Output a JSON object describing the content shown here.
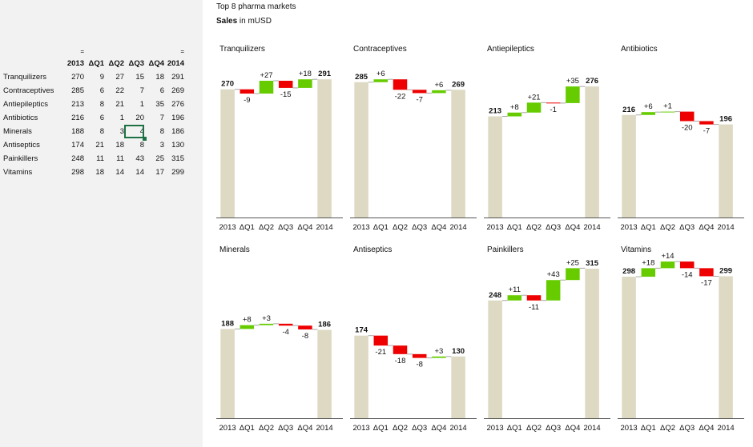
{
  "header": {
    "title": "Top 8 pharma markets",
    "subtitle_bold": "Sales",
    "subtitle_rest": " in mUSD"
  },
  "table": {
    "columns": [
      "2013",
      "ΔQ1",
      "ΔQ2",
      "ΔQ3",
      "ΔQ4",
      "2014"
    ],
    "eq_marks": [
      "=",
      "",
      "",
      "",
      "",
      "="
    ],
    "rows": [
      {
        "name": "Tranquilizers",
        "values": [
          "270",
          "9",
          "27",
          "15",
          "18",
          "291"
        ]
      },
      {
        "name": "Contraceptives",
        "values": [
          "285",
          "6",
          "22",
          "7",
          "6",
          "269"
        ]
      },
      {
        "name": "Antiepileptics",
        "values": [
          "213",
          "8",
          "21",
          "1",
          "35",
          "276"
        ]
      },
      {
        "name": "Antibiotics",
        "values": [
          "216",
          "6",
          "1",
          "20",
          "7",
          "196"
        ]
      },
      {
        "name": "Minerals",
        "values": [
          "188",
          "8",
          "3",
          "4",
          "8",
          "186"
        ]
      },
      {
        "name": "Antiseptics",
        "values": [
          "174",
          "21",
          "18",
          "8",
          "3",
          "130"
        ]
      },
      {
        "name": "Painkillers",
        "values": [
          "248",
          "11",
          "11",
          "43",
          "25",
          "315"
        ]
      },
      {
        "name": "Vitamins",
        "values": [
          "298",
          "18",
          "14",
          "14",
          "17",
          "299"
        ]
      }
    ],
    "selected_cell": {
      "row": 4,
      "col": 3
    }
  },
  "colors": {
    "total_bar": "#ddd9c3",
    "increase": "#66cc00",
    "decrease": "#ee0000",
    "connector": "#a6a6a6",
    "axis": "#555555",
    "left_panel": "#f2f2f2",
    "selection": "#1e7145"
  },
  "chart_data": [
    {
      "type": "bar",
      "subtype": "waterfall",
      "title": "Tranquilizers",
      "categories": [
        "2013",
        "ΔQ1",
        "ΔQ2",
        "ΔQ3",
        "ΔQ4",
        "2014"
      ],
      "values": [
        270,
        -9,
        27,
        -15,
        18,
        291
      ],
      "labels": [
        "270",
        "-9",
        "+27",
        "-15",
        "+18",
        "291"
      ]
    },
    {
      "type": "bar",
      "subtype": "waterfall",
      "title": "Contraceptives",
      "categories": [
        "2013",
        "ΔQ1",
        "ΔQ2",
        "ΔQ3",
        "ΔQ4",
        "2014"
      ],
      "values": [
        285,
        6,
        -22,
        -7,
        6,
        269
      ],
      "labels": [
        "285",
        "+6",
        "-22",
        "-7",
        "+6",
        "269"
      ]
    },
    {
      "type": "bar",
      "subtype": "waterfall",
      "title": "Antiepileptics",
      "categories": [
        "2013",
        "ΔQ1",
        "ΔQ2",
        "ΔQ3",
        "ΔQ4",
        "2014"
      ],
      "values": [
        213,
        8,
        21,
        -1,
        35,
        276
      ],
      "labels": [
        "213",
        "+8",
        "+21",
        "-1",
        "+35",
        "276"
      ]
    },
    {
      "type": "bar",
      "subtype": "waterfall",
      "title": "Antibiotics",
      "categories": [
        "2013",
        "ΔQ1",
        "ΔQ2",
        "ΔQ3",
        "ΔQ4",
        "2014"
      ],
      "values": [
        216,
        6,
        1,
        -20,
        -7,
        196
      ],
      "labels": [
        "216",
        "+6",
        "+1",
        "-20",
        "-7",
        "196"
      ]
    },
    {
      "type": "bar",
      "subtype": "waterfall",
      "title": "Minerals",
      "categories": [
        "2013",
        "ΔQ1",
        "ΔQ2",
        "ΔQ3",
        "ΔQ4",
        "2014"
      ],
      "values": [
        188,
        8,
        3,
        -4,
        -8,
        186
      ],
      "labels": [
        "188",
        "+8",
        "+3",
        "-4",
        "-8",
        "186"
      ]
    },
    {
      "type": "bar",
      "subtype": "waterfall",
      "title": "Antiseptics",
      "categories": [
        "2013",
        "ΔQ1",
        "ΔQ2",
        "ΔQ3",
        "ΔQ4",
        "2014"
      ],
      "values": [
        174,
        -21,
        -18,
        -8,
        3,
        130
      ],
      "labels": [
        "174",
        "-21",
        "-18",
        "-8",
        "+3",
        "130"
      ]
    },
    {
      "type": "bar",
      "subtype": "waterfall",
      "title": "Painkillers",
      "categories": [
        "2013",
        "ΔQ1",
        "ΔQ2",
        "ΔQ3",
        "ΔQ4",
        "2014"
      ],
      "values": [
        248,
        11,
        -11,
        43,
        25,
        315
      ],
      "labels": [
        "248",
        "+11",
        "-11",
        "+43",
        "+25",
        "315"
      ]
    },
    {
      "type": "bar",
      "subtype": "waterfall",
      "title": "Vitamins",
      "categories": [
        "2013",
        "ΔQ1",
        "ΔQ2",
        "ΔQ3",
        "ΔQ4",
        "2014"
      ],
      "values": [
        298,
        18,
        14,
        -14,
        -17,
        299
      ],
      "labels": [
        "298",
        "+18",
        "+14",
        "-14",
        "-17",
        "299"
      ]
    }
  ]
}
